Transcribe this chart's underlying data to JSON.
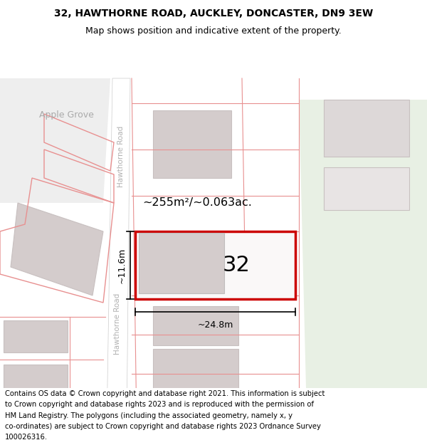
{
  "title_line1": "32, HAWTHORNE ROAD, AUCKLEY, DONCASTER, DN9 3EW",
  "title_line2": "Map shows position and indicative extent of the property.",
  "area_label": "~255m²/~0.063ac.",
  "width_label": "~24.8m",
  "height_label": "~11.6m",
  "plot_number": "32",
  "map_bg": "#f7f3f3",
  "road_color": "#e8e4e4",
  "building_fill": "#d4cccc",
  "building_fill_light": "#ddd8d8",
  "plot_outline_color": "#e8000000",
  "road_label_color": "#b0b0b0",
  "dim_color": "#000000",
  "prop_line_color": "#e89090",
  "green_color": "#e8f0e4",
  "title_fontsize": 10,
  "subtitle_fontsize": 9,
  "footer_fontsize": 7.2,
  "footer_lines": [
    "Contains OS data © Crown copyright and database right 2021. This information is subject",
    "to Crown copyright and database rights 2023 and is reproduced with the permission of",
    "HM Land Registry. The polygons (including the associated geometry, namely x, y",
    "co-ordinates) are subject to Crown copyright and database rights 2023 Ordnance Survey",
    "100026316."
  ]
}
